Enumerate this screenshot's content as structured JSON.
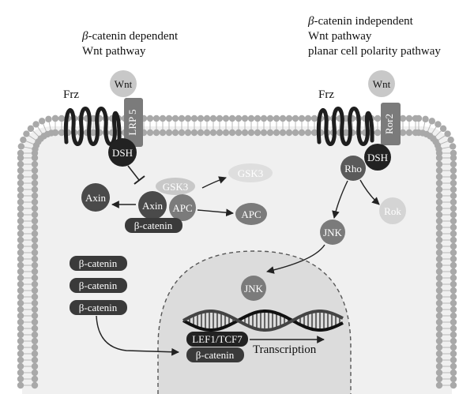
{
  "captions": {
    "left_line1_greek": "β",
    "left_line1_rest": "-catenin dependent",
    "left_line2": "Wnt pathway",
    "right_line1_greek": "β",
    "right_line1_rest": "-catenin independent",
    "right_line2": "Wnt pathway",
    "right_line3": "planar cell polarity pathway"
  },
  "left_pathway": {
    "frz": "Frz",
    "wnt": "Wnt",
    "lrp": "LRP 5",
    "dsh": "DSH",
    "axin_free": "Axin",
    "gsk3_complex": "GSK3",
    "gsk3_free": "GSK3",
    "axin_complex": "Axin",
    "apc_complex": "APC",
    "apc_free": "APC",
    "catenin_complex": "β-catenin"
  },
  "right_pathway": {
    "frz": "Frz",
    "wnt": "Wnt",
    "ror": "Ror2",
    "dsh": "DSH",
    "rho": "Rho",
    "rok": "Rok",
    "jnk": "JNK"
  },
  "cytoplasm": {
    "catenin_1": "β-catenin",
    "catenin_2": "β-catenin",
    "catenin_3": "β-catenin"
  },
  "nucleus": {
    "jnk": "JNK",
    "lef_tcf": "LEF1/TCF7",
    "catenin": "β-catenin",
    "transcription": "Transcription"
  },
  "colors": {
    "dark": "#3a3a3a",
    "mid": "#7b7b7b",
    "light": "#c8c8c8",
    "cell": "#f0f0f0",
    "nucleus": "#dcdcdc",
    "membrane": "#a9a9a9"
  }
}
